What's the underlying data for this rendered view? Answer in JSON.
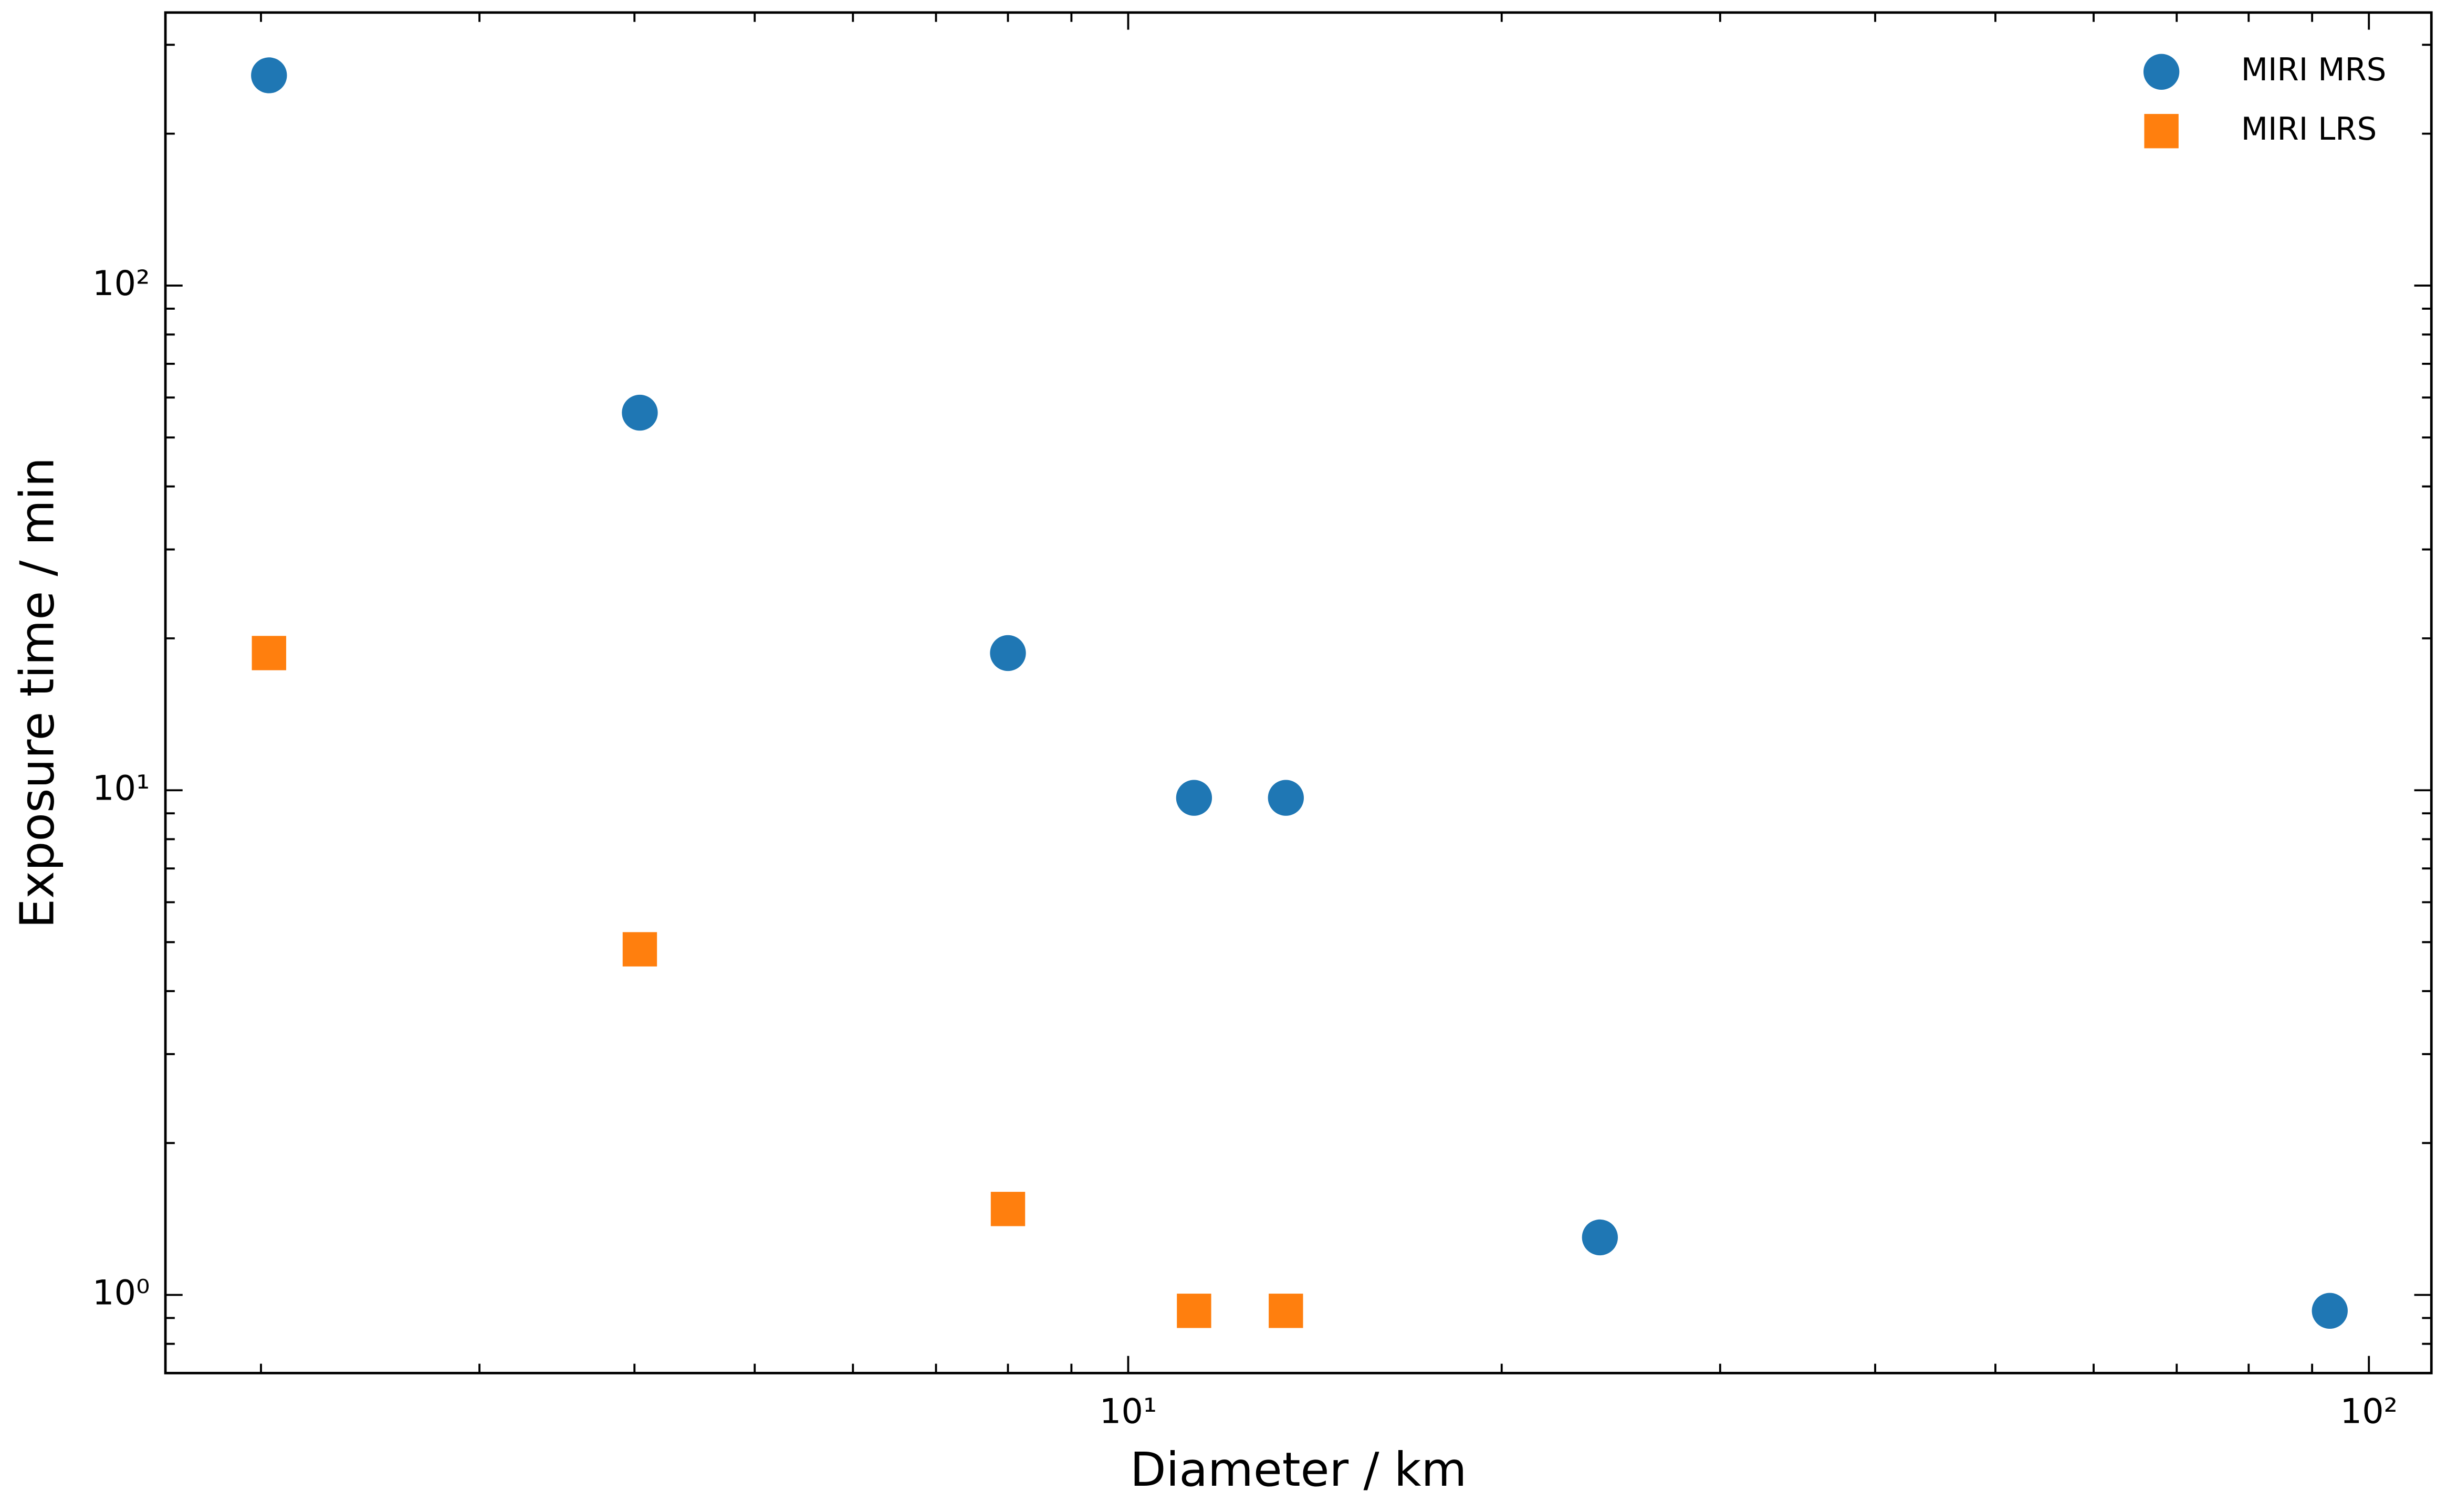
{
  "chart_data": {
    "type": "scatter",
    "x_label": "Diameter / km",
    "y_label": "Exposure time / min",
    "xscale": "log",
    "yscale": "log",
    "xlim": [
      1.675,
      112.3
    ],
    "ylim": [
      0.7,
      347.6
    ],
    "xticks": [
      {
        "value": 10,
        "label": "10¹"
      },
      {
        "value": 100,
        "label": "10²"
      }
    ],
    "yticks": [
      {
        "value": 1,
        "label": "10⁰"
      },
      {
        "value": 10,
        "label": "10¹"
      },
      {
        "value": 100,
        "label": "10²"
      }
    ],
    "legend": "upper right",
    "series": [
      {
        "name": "MIRI MRS",
        "color": "#1f77b4",
        "marker": "circle",
        "x": [
          2.03,
          4.04,
          8.0,
          11.3,
          13.4,
          24.0,
          93
        ],
        "values": [
          261,
          56,
          18.7,
          9.66,
          9.66,
          1.3,
          0.93
        ]
      },
      {
        "name": "MIRI LRS",
        "color": "#ff7f0e",
        "marker": "square",
        "x": [
          2.03,
          4.04,
          8.0,
          11.3,
          13.4
        ],
        "values": [
          18.7,
          4.84,
          1.48,
          0.93,
          0.93
        ]
      }
    ]
  }
}
